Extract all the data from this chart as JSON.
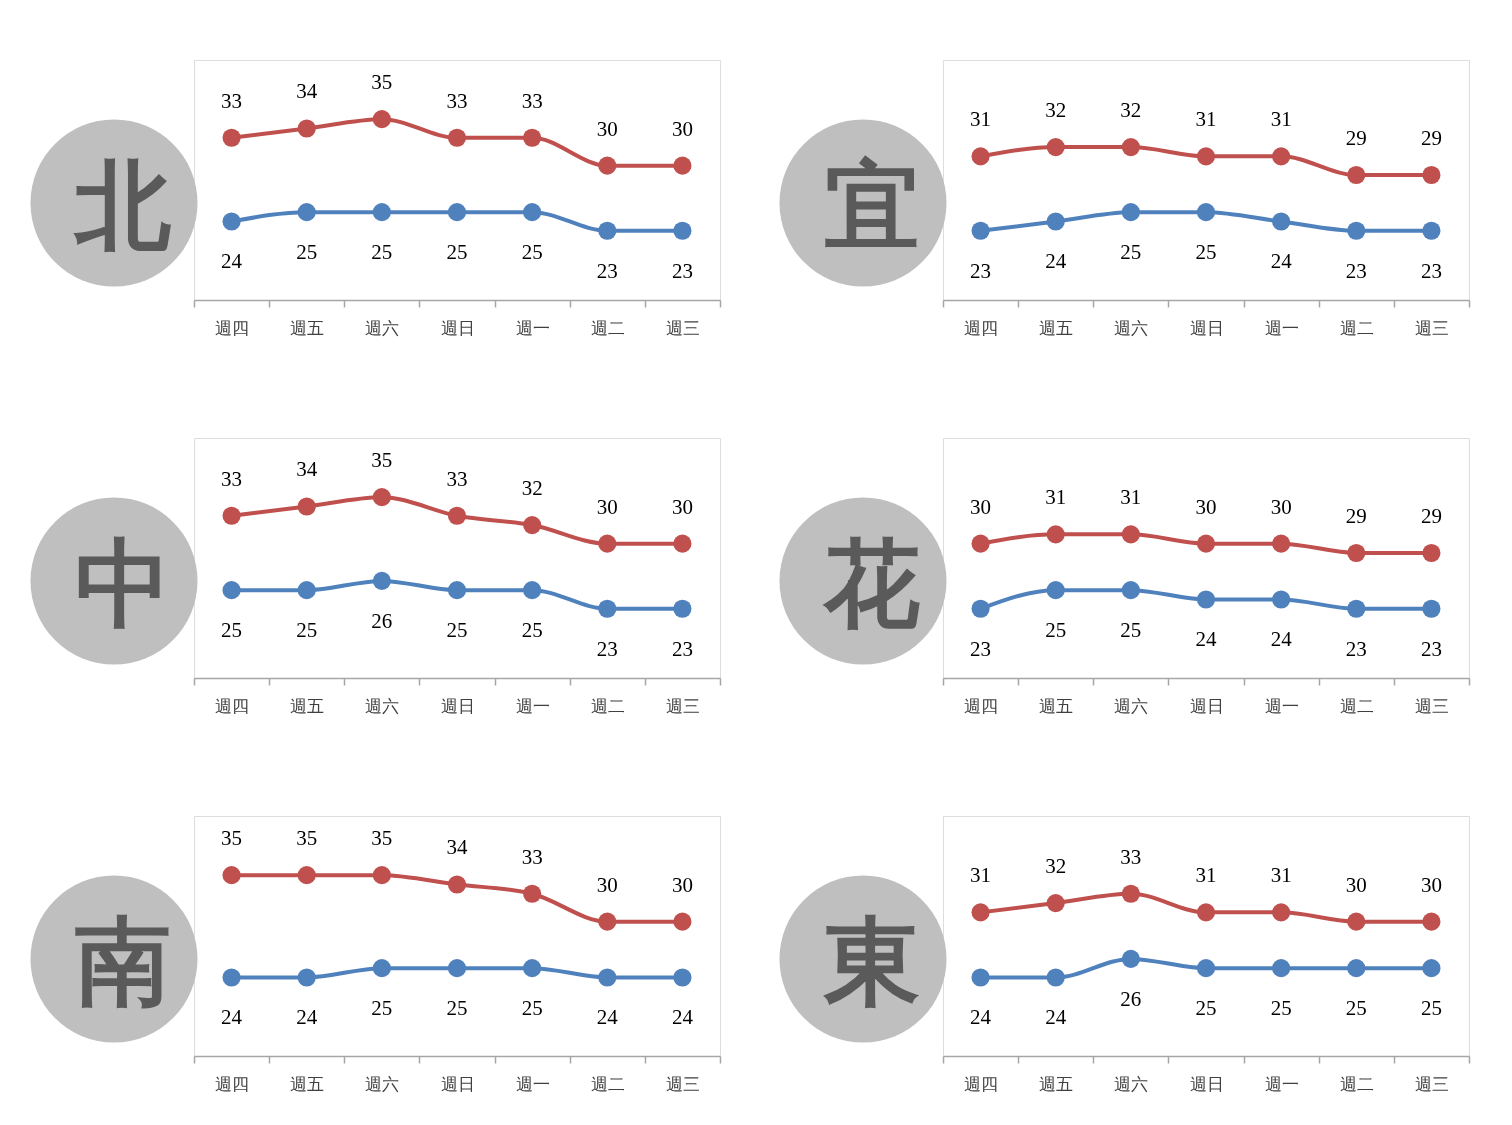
{
  "chart_data": [
    {
      "type": "line",
      "title": "北",
      "categories": [
        "週四",
        "週五",
        "週六",
        "週日",
        "週一",
        "週二",
        "週三"
      ],
      "series": [
        {
          "color": "#c0504d",
          "values": [
            33,
            34,
            35,
            33,
            33,
            30,
            30
          ]
        },
        {
          "color": "#4f81bd",
          "values": [
            24,
            25,
            25,
            25,
            25,
            23,
            23
          ]
        }
      ],
      "data_labels": true,
      "marker": "circle",
      "line_style": "solid",
      "tick_labels": "x"
    },
    {
      "type": "line",
      "title": "宜",
      "categories": [
        "週四",
        "週五",
        "週六",
        "週日",
        "週一",
        "週二",
        "週三"
      ],
      "series": [
        {
          "color": "#c0504d",
          "values": [
            31,
            32,
            32,
            31,
            31,
            29,
            29
          ]
        },
        {
          "color": "#4f81bd",
          "values": [
            23,
            24,
            25,
            25,
            24,
            23,
            23
          ]
        }
      ],
      "data_labels": true,
      "marker": "circle",
      "line_style": "solid",
      "tick_labels": "x"
    },
    {
      "type": "line",
      "title": "中",
      "categories": [
        "週四",
        "週五",
        "週六",
        "週日",
        "週一",
        "週二",
        "週三"
      ],
      "series": [
        {
          "color": "#c0504d",
          "values": [
            33,
            34,
            35,
            33,
            32,
            30,
            30
          ]
        },
        {
          "color": "#4f81bd",
          "values": [
            25,
            25,
            26,
            25,
            25,
            23,
            23
          ]
        }
      ],
      "data_labels": true,
      "marker": "circle",
      "line_style": "solid",
      "tick_labels": "x"
    },
    {
      "type": "line",
      "title": "花",
      "categories": [
        "週四",
        "週五",
        "週六",
        "週日",
        "週一",
        "週二",
        "週三"
      ],
      "series": [
        {
          "color": "#c0504d",
          "values": [
            30,
            31,
            31,
            30,
            30,
            29,
            29
          ]
        },
        {
          "color": "#4f81bd",
          "values": [
            23,
            25,
            25,
            24,
            24,
            23,
            23
          ]
        }
      ],
      "data_labels": true,
      "marker": "circle",
      "line_style": "solid",
      "tick_labels": "x"
    },
    {
      "type": "line",
      "title": "南",
      "categories": [
        "週四",
        "週五",
        "週六",
        "週日",
        "週一",
        "週二",
        "週三"
      ],
      "series": [
        {
          "color": "#c0504d",
          "values": [
            35,
            35,
            35,
            34,
            33,
            30,
            30
          ]
        },
        {
          "color": "#4f81bd",
          "values": [
            24,
            24,
            25,
            25,
            25,
            24,
            24
          ]
        }
      ],
      "data_labels": true,
      "marker": "circle",
      "line_style": "solid",
      "tick_labels": "x"
    },
    {
      "type": "line",
      "title": "東",
      "categories": [
        "週四",
        "週五",
        "週六",
        "週日",
        "週一",
        "週二",
        "週三"
      ],
      "series": [
        {
          "color": "#c0504d",
          "values": [
            31,
            32,
            33,
            31,
            31,
            30,
            30
          ]
        },
        {
          "color": "#4f81bd",
          "values": [
            24,
            24,
            26,
            25,
            25,
            25,
            25
          ]
        }
      ],
      "data_labels": true,
      "marker": "circle",
      "line_style": "solid",
      "tick_labels": "x"
    }
  ]
}
